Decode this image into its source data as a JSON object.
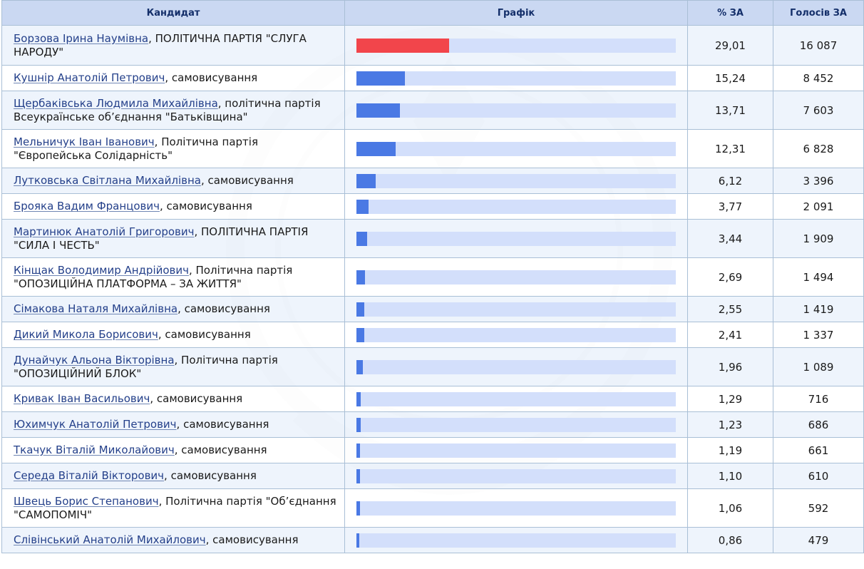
{
  "header": {
    "col_candidate": "Кандидат",
    "col_chart": "Графік",
    "col_percent": "% ЗА",
    "col_votes": "Голосів ЗА"
  },
  "colors": {
    "leader_bar": "#f2454b",
    "bar": "#4a79e4",
    "bar_track": "#d3dffb",
    "header_bg": "#cad8f2"
  },
  "chart_data": {
    "type": "bar",
    "ylim": [
      0,
      100
    ],
    "categories": [
      "Борзова Ірина Наумівна",
      "Кушнір Анатолій Петрович",
      "Щербаківська Людмила Михайлівна",
      "Мельничук Іван Іванович",
      "Лутковська Світлана Михайлівна",
      "Брояка Вадим Францович",
      "Мартинюк Анатолій Григорович",
      "Кінщак Володимир Андрійович",
      "Сімакова Наталя Михайлівна",
      "Дикий Микола Борисович",
      "Дунайчук Альона Вікторівна",
      "Кривак Іван Васильович",
      "Юхимчук Анатолій Петрович",
      "Ткачук Віталій Миколайович",
      "Середа Віталій Вікторович",
      "Швець Борис Степанович",
      "Слівінський Анатолій Михайлович"
    ],
    "values": [
      29.01,
      15.24,
      13.71,
      12.31,
      6.12,
      3.77,
      3.44,
      2.69,
      2.55,
      2.41,
      1.96,
      1.29,
      1.23,
      1.19,
      1.1,
      1.06,
      0.86
    ]
  },
  "rows": [
    {
      "name": "Борзова Ірина Наумівна",
      "party": ", ПОЛІТИЧНА ПАРТІЯ \"СЛУГА НАРОДУ\"",
      "percent": "29,01",
      "votes": "16 087"
    },
    {
      "name": "Кушнір Анатолій Петрович",
      "party": ", самовисування",
      "percent": "15,24",
      "votes": "8 452"
    },
    {
      "name": "Щербаківська Людмила Михайлівна",
      "party": ", політична партія Всеукраїнське об’єднання \"Батьківщина\"",
      "percent": "13,71",
      "votes": "7 603"
    },
    {
      "name": "Мельничук Іван Іванович",
      "party": ", Політична партія \"Європейська Солідарність\"",
      "percent": "12,31",
      "votes": "6 828"
    },
    {
      "name": "Лутковська Світлана Михайлівна",
      "party": ", самовисування",
      "percent": "6,12",
      "votes": "3 396"
    },
    {
      "name": "Брояка Вадим Францович",
      "party": ", самовисування",
      "percent": "3,77",
      "votes": "2 091"
    },
    {
      "name": "Мартинюк Анатолій Григорович",
      "party": ", ПОЛІТИЧНА ПАРТІЯ \"СИЛА І ЧЕСТЬ\"",
      "percent": "3,44",
      "votes": "1 909"
    },
    {
      "name": "Кінщак Володимир Андрійович",
      "party": ", Політична партія \"ОПОЗИЦІЙНА ПЛАТФОРМА – ЗА ЖИТТЯ\"",
      "percent": "2,69",
      "votes": "1 494"
    },
    {
      "name": "Сімакова Наталя Михайлівна",
      "party": ", самовисування",
      "percent": "2,55",
      "votes": "1 419"
    },
    {
      "name": "Дикий Микола Борисович",
      "party": ", самовисування",
      "percent": "2,41",
      "votes": "1 337"
    },
    {
      "name": "Дунайчук Альона Вікторівна",
      "party": ", Політична партія \"ОПОЗИЦІЙНИЙ БЛОК\"",
      "percent": "1,96",
      "votes": "1 089"
    },
    {
      "name": "Кривак Іван Васильович",
      "party": ", самовисування",
      "percent": "1,29",
      "votes": "716"
    },
    {
      "name": "Юхимчук Анатолій Петрович",
      "party": ", самовисування",
      "percent": "1,23",
      "votes": "686"
    },
    {
      "name": "Ткачук Віталій Миколайович",
      "party": ", самовисування",
      "percent": "1,19",
      "votes": "661"
    },
    {
      "name": "Середа Віталій Вікторович",
      "party": ", самовисування",
      "percent": "1,10",
      "votes": "610"
    },
    {
      "name": "Швець Борис Степанович",
      "party": ", Політична партія \"Об’єднання \"САМОПОМІЧ\"",
      "percent": "1,06",
      "votes": "592"
    },
    {
      "name": "Слівінський Анатолій Михайлович",
      "party": ", самовисування",
      "percent": "0,86",
      "votes": "479"
    }
  ]
}
